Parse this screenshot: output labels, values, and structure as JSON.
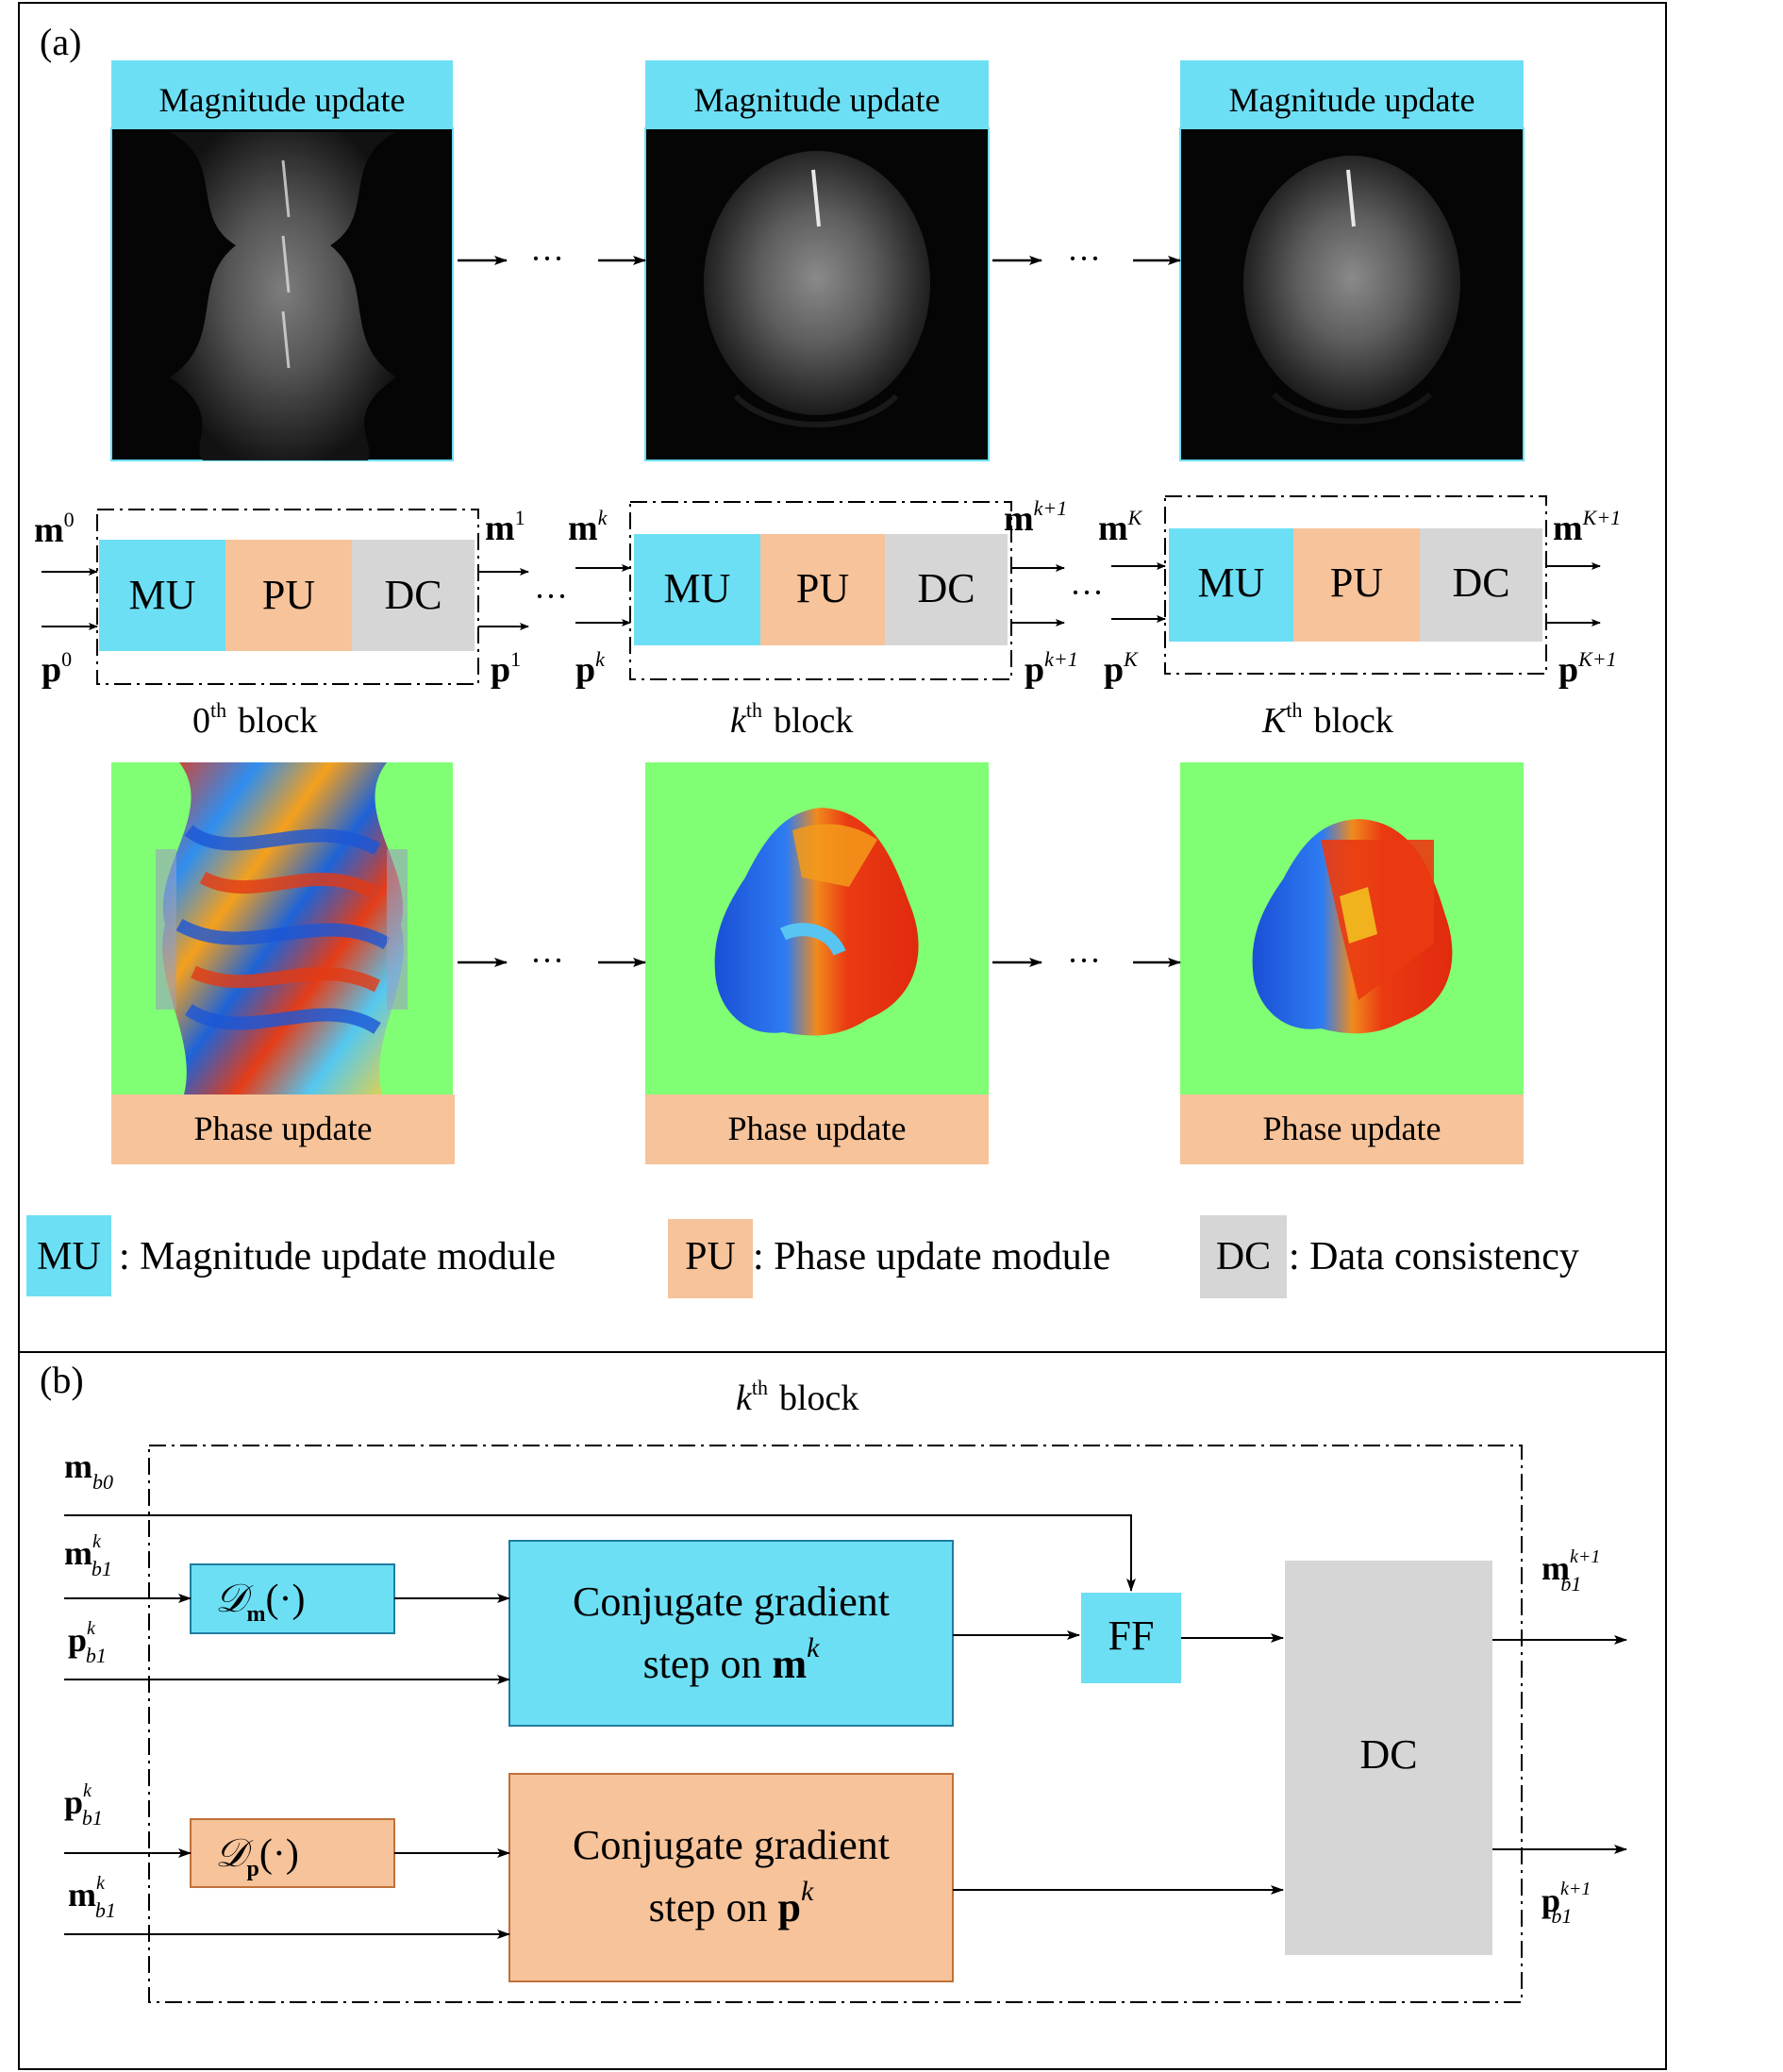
{
  "colors": {
    "mu_blue": "#6ddff5",
    "pu_orange": "#f7c39a",
    "dc_gray": "#d6d6d6",
    "phase_bg": "#80ff74",
    "pu_border": "#c0713a",
    "mu_border": "#1f7ca0"
  },
  "panel_a": {
    "label": "(a)",
    "magnitude_title": "Magnitude update",
    "phase_title": "Phase update",
    "ellipsis": "···",
    "block": {
      "mu": "MU",
      "pu": "PU",
      "dc": "DC"
    },
    "captions": [
      {
        "sym": "0",
        "sup": "th",
        "word": "block"
      },
      {
        "sym": "k",
        "sup": "th",
        "word": "block"
      },
      {
        "sym": "K",
        "sup": "th",
        "word": "block"
      }
    ],
    "io": {
      "m": "m",
      "p": "p",
      "sup_0": "0",
      "sup_1": "1",
      "sup_k": "k",
      "sup_k1": "k+1",
      "sup_K": "K",
      "sup_K1": "K+1"
    },
    "legend": [
      {
        "key": "MU",
        "text": ": Magnitude update module"
      },
      {
        "key": "PU",
        "text": ": Phase update module"
      },
      {
        "key": "DC",
        "text": ": Data consistency"
      }
    ]
  },
  "panel_b": {
    "label": "(b)",
    "title": {
      "sym": "k",
      "sup": "th",
      "word": "block"
    },
    "inputs": {
      "m": "m",
      "p": "p",
      "sub_b0": "b0",
      "sub_b1": "b1",
      "sup_k": "k",
      "sup_k1": "k+1"
    },
    "dm_op": {
      "script": "𝒟",
      "sub": "m",
      "arg": "(·)"
    },
    "dp_op": {
      "script": "𝒟",
      "sub": "p",
      "arg": "(·)"
    },
    "cg_m": {
      "line1": "Conjugate gradient",
      "line2": "step on ",
      "var": "m",
      "sup": "k"
    },
    "cg_p": {
      "line1": "Conjugate gradient",
      "line2": "step on ",
      "var": "p",
      "sup": "k"
    },
    "ff": "FF",
    "dc": "DC"
  }
}
